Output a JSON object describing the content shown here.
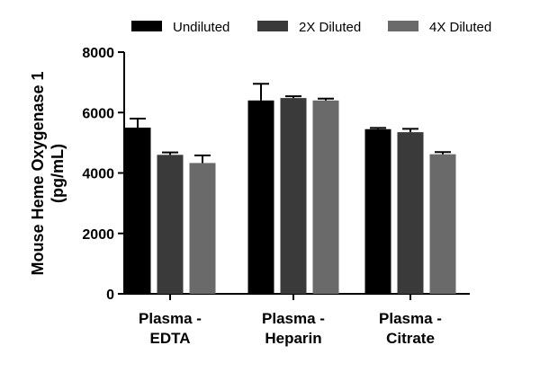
{
  "chart_data": {
    "type": "bar",
    "categories": [
      [
        "Plasma -",
        "EDTA"
      ],
      [
        "Plasma -",
        "Heparin"
      ],
      [
        "Plasma -",
        "Citrate"
      ]
    ],
    "series": [
      {
        "name": "Undiluted",
        "color": "#000000",
        "values": [
          5500,
          6400,
          5450
        ],
        "errors": [
          300,
          550,
          40
        ]
      },
      {
        "name": "2X Diluted",
        "color": "#3a3a3a",
        "values": [
          4600,
          6480,
          5350
        ],
        "errors": [
          80,
          60,
          110
        ]
      },
      {
        "name": "4X Diluted",
        "color": "#6a6a6a",
        "values": [
          4330,
          6400,
          4620
        ],
        "errors": [
          250,
          60,
          70
        ]
      }
    ],
    "ylabel": [
      "Mouse Heme Oxygenase 1",
      "(pg/mL)"
    ],
    "xlabel": "",
    "ylim": [
      0,
      8000
    ],
    "yticks": [
      0,
      2000,
      4000,
      6000,
      8000
    ],
    "ytick_labels": [
      "0",
      "2000",
      "4000",
      "6000",
      "8000"
    ],
    "legend_position": "top",
    "grid": false
  }
}
